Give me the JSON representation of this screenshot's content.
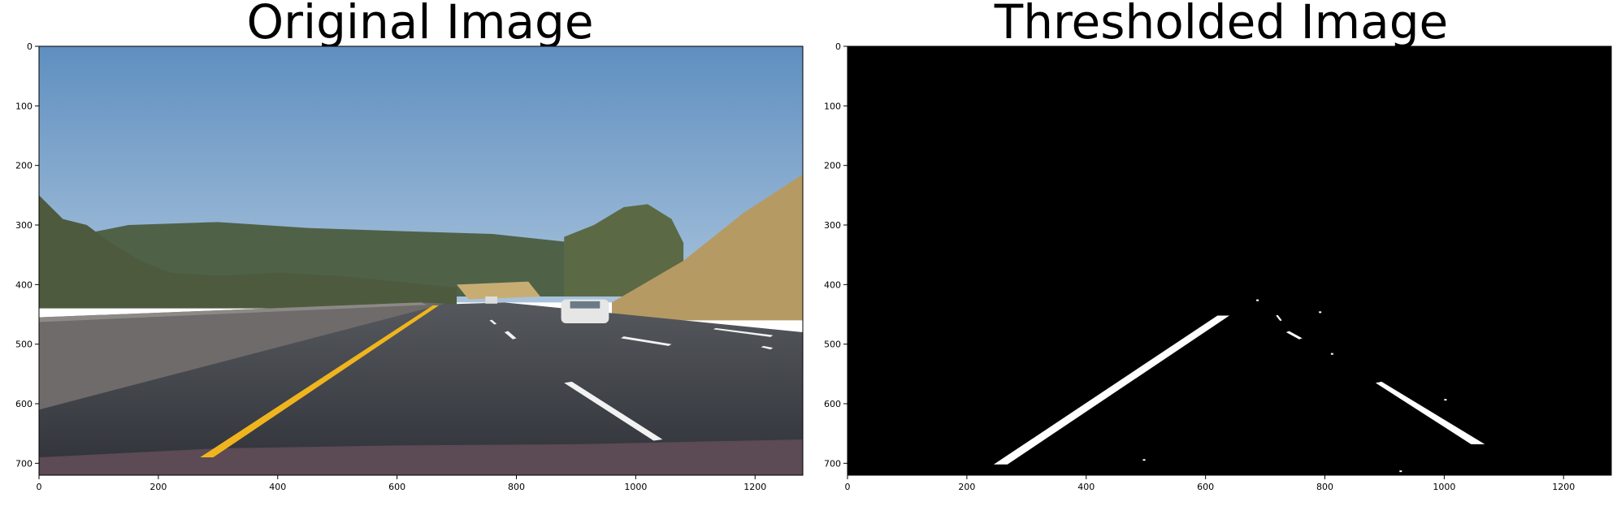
{
  "chart_data": [
    {
      "type": "image",
      "title": "Original Image",
      "xlim": [
        0,
        1280
      ],
      "ylim": [
        720,
        0
      ],
      "xticks": [
        0,
        200,
        400,
        600,
        800,
        1000,
        1200
      ],
      "yticks": [
        0,
        100,
        200,
        300,
        400,
        500,
        600,
        700
      ],
      "xtick_labels": [
        "0",
        "200",
        "400",
        "600",
        "800",
        "1000",
        "1200"
      ],
      "ytick_labels": [
        "0",
        "100",
        "200",
        "300",
        "400",
        "500",
        "600",
        "700"
      ],
      "colors": {
        "sky": "#7ea6cc",
        "road": "#3b3e45",
        "hill": "#b69a63",
        "trees": "#4d5a3e",
        "yellow_line": "#f0b51e",
        "lane_white": "#f2f2f2"
      }
    },
    {
      "type": "image",
      "title": "Thresholded Image",
      "xlim": [
        0,
        1280
      ],
      "ylim": [
        720,
        0
      ],
      "xticks": [
        0,
        200,
        400,
        600,
        800,
        1000,
        1200
      ],
      "yticks": [
        0,
        100,
        200,
        300,
        400,
        500,
        600,
        700
      ],
      "xtick_labels": [
        "0",
        "200",
        "400",
        "600",
        "800",
        "1000",
        "1200"
      ],
      "ytick_labels": [
        "0",
        "100",
        "200",
        "300",
        "400",
        "500",
        "600",
        "700"
      ],
      "colors": {
        "background": "#000000",
        "detected": "#ffffff"
      },
      "detected_regions": [
        {
          "name": "left-lane-line",
          "points": [
            [
              245,
              702
            ],
            [
              268,
              702
            ],
            [
              640,
              452
            ],
            [
              620,
              452
            ]
          ]
        },
        {
          "name": "right-lane-dash-near",
          "points": [
            [
              885,
              565
            ],
            [
              895,
              563
            ],
            [
              1068,
              668
            ],
            [
              1045,
              668
            ]
          ]
        },
        {
          "name": "right-lane-dash-mid",
          "points": [
            [
              735,
              480
            ],
            [
              740,
              478
            ],
            [
              762,
              490
            ],
            [
              757,
              492
            ]
          ]
        },
        {
          "name": "right-lane-dash-far",
          "points": [
            [
              718,
              452
            ],
            [
              721,
              451
            ],
            [
              728,
              460
            ],
            [
              725,
              461
            ]
          ]
        }
      ]
    }
  ]
}
